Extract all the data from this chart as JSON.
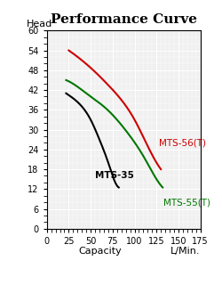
{
  "title": "Performance Curve",
  "xlabel_left": "Capacity",
  "xlabel_right": "L/Min.",
  "ylabel": "Head",
  "xlim": [
    0,
    175
  ],
  "ylim": [
    0,
    60
  ],
  "xticks": [
    0,
    25,
    50,
    75,
    100,
    125,
    150,
    175
  ],
  "yticks": [
    0,
    6,
    12,
    18,
    24,
    30,
    36,
    42,
    48,
    54,
    60
  ],
  "curves": [
    {
      "name": "MTS-56(T)",
      "color": "#cc0000",
      "x": [
        25,
        40,
        55,
        70,
        85,
        100,
        115,
        125,
        130
      ],
      "y": [
        54,
        51,
        47.5,
        43.5,
        39,
        33,
        25,
        20,
        18
      ]
    },
    {
      "name": "MTS-55(T)",
      "color": "#007700",
      "x": [
        22,
        35,
        50,
        65,
        80,
        95,
        110,
        125,
        132
      ],
      "y": [
        45,
        43,
        40,
        37,
        33,
        28,
        22,
        15,
        12.5
      ]
    },
    {
      "name": "MTS-35",
      "color": "#000000",
      "x": [
        22,
        30,
        40,
        50,
        60,
        70,
        78,
        82
      ],
      "y": [
        41,
        39.5,
        37,
        33,
        27,
        20,
        14,
        12.5
      ]
    }
  ],
  "label_positions": {
    "MTS-56(T)": [
      128,
      26
    ],
    "MTS-55(T)": [
      133,
      8
    ],
    "MTS-35": [
      55,
      16
    ]
  },
  "background_color": "#f0f0f0",
  "title_fontsize": 11,
  "axis_label_fontsize": 8,
  "tick_fontsize": 7,
  "curve_label_fontsize": 7.5
}
